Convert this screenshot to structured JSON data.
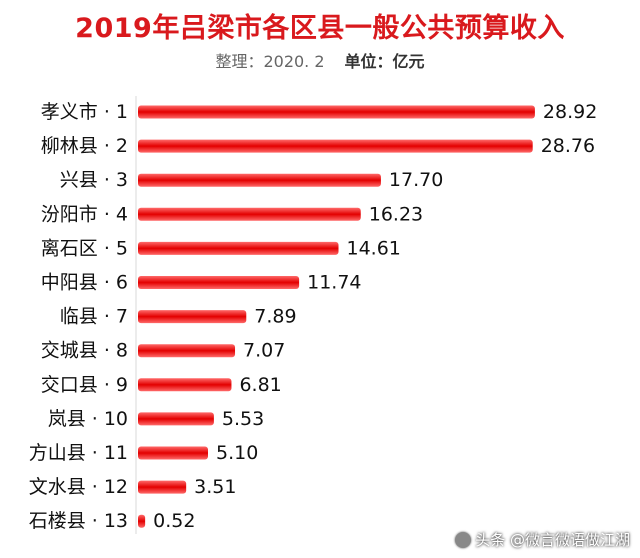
{
  "chart_data": {
    "type": "bar",
    "orientation": "horizontal",
    "title": "2019年吕梁市各区县一般公共预算收入",
    "subtitle": "整理：2020. 2",
    "unit": "单位：亿元",
    "categories": [
      "孝义市 · 1",
      "柳林县 · 2",
      "兴县 · 3",
      "汾阳市 · 4",
      "离石区 · 5",
      "中阳县 · 6",
      "临县 · 7",
      "交城县 · 8",
      "交口县 · 9",
      "岚县 · 10",
      "方山县 · 11",
      "文水县 · 12",
      "石楼县 · 13"
    ],
    "values": [
      28.92,
      28.76,
      17.7,
      16.23,
      14.61,
      11.74,
      7.89,
      7.07,
      6.81,
      5.53,
      5.1,
      3.51,
      0.52
    ],
    "value_labels": [
      "28.92",
      "28.76",
      "17.70",
      "16.23",
      "14.61",
      "11.74",
      "7.89",
      "7.07",
      "6.81",
      "5.53",
      "5.10",
      "3.51",
      "0.52"
    ],
    "xlim": [
      0,
      29
    ],
    "grid": false,
    "legend": "none",
    "bar_color": "#ff0000"
  },
  "watermark": "头条 @微言微语做江湖"
}
